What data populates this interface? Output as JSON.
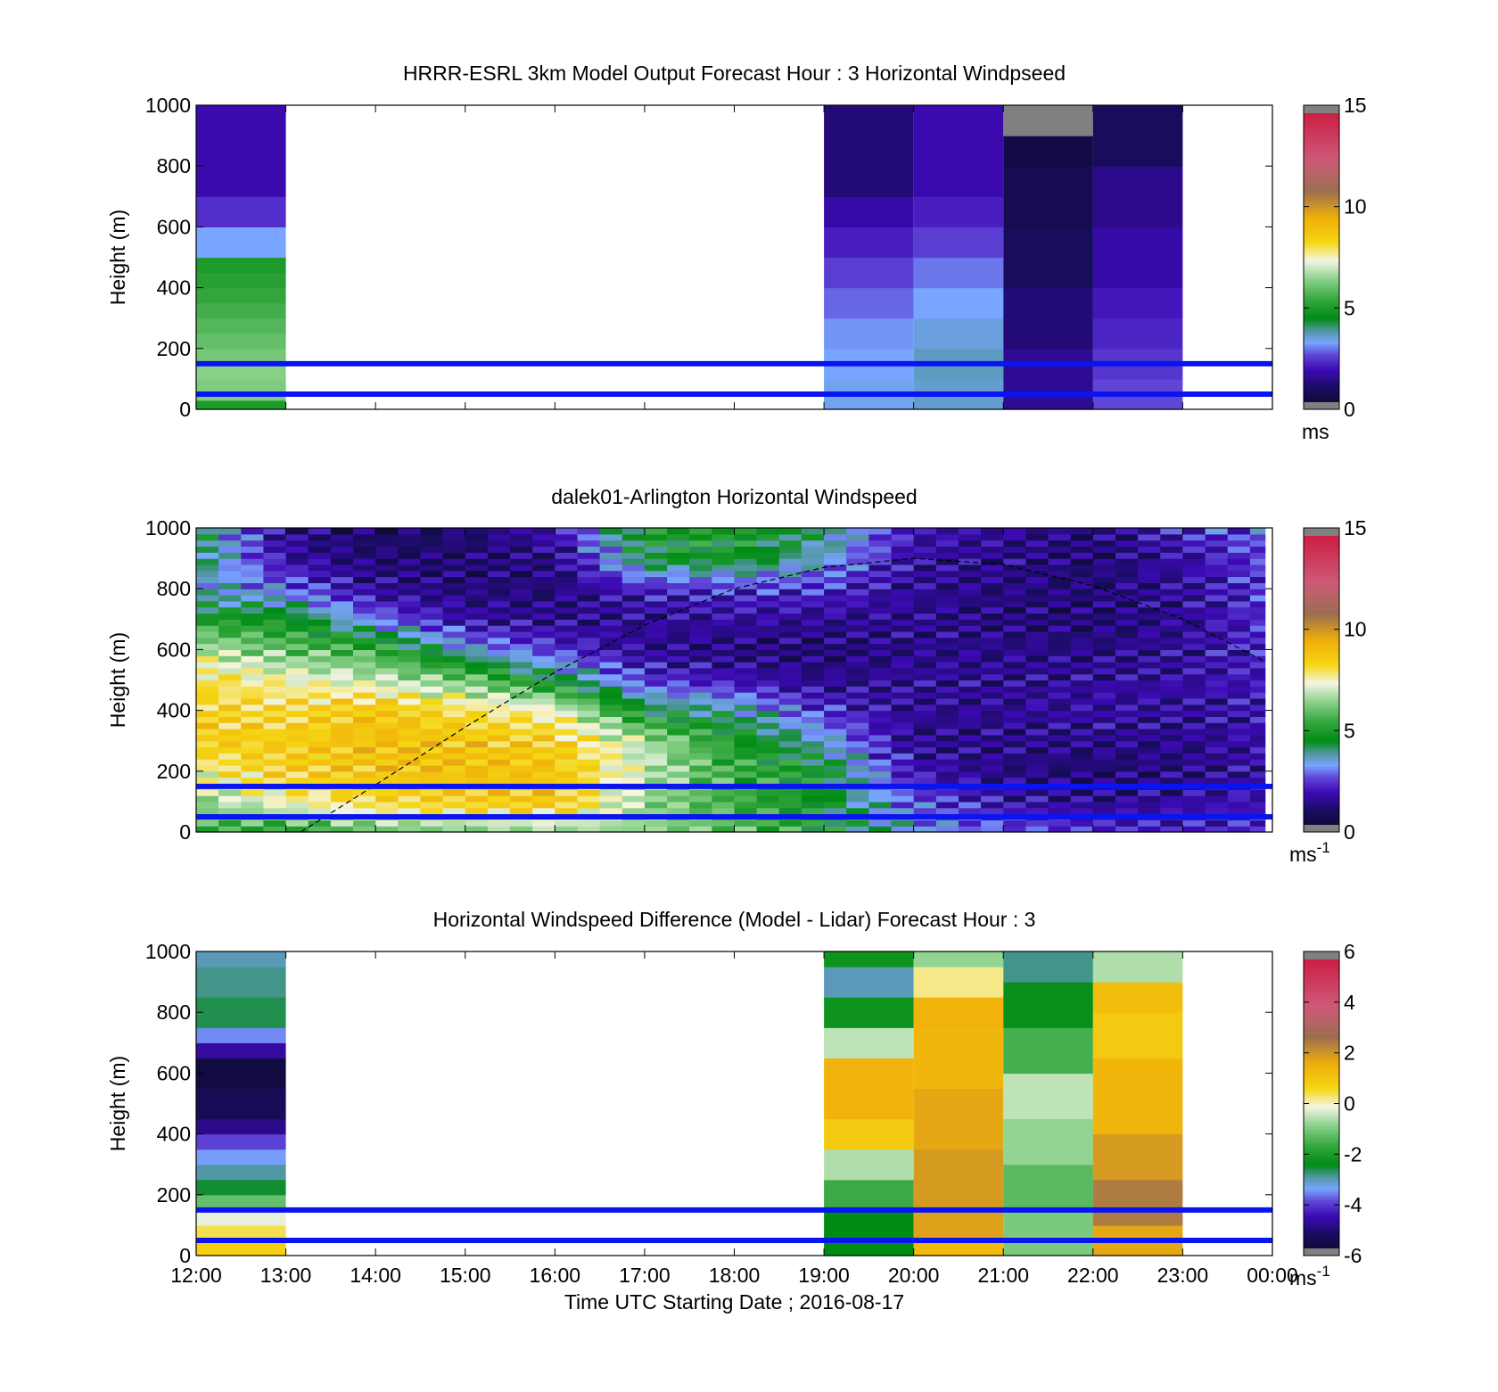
{
  "chart_data": [
    {
      "type": "heatmap",
      "title": "HRRR-ESRL 3km Model Output   Forecast Hour : 3 Horizontal Windpseed",
      "ylabel": "Height (m)",
      "xlabel": "",
      "xlim": [
        "12:00",
        "00:00"
      ],
      "ylim": [
        0,
        1000
      ],
      "yticks": [
        0,
        200,
        400,
        600,
        800,
        1000
      ],
      "colorbar": {
        "min": 0,
        "max": 15,
        "ticks": [
          "0",
          "5",
          "10",
          "15"
        ],
        "unit_main": "ms",
        "unit_sup": ""
      },
      "reference_lines_m": [
        50,
        150
      ],
      "reference_line_color": "#0a14f0",
      "columns": [
        {
          "start": "12:00",
          "end": "13:00",
          "cells": [
            {
              "from": 0,
              "to": 30,
              "value": 5.0
            },
            {
              "from": 30,
              "to": 100,
              "value": 6.3
            },
            {
              "from": 100,
              "to": 150,
              "value": 6.4
            },
            {
              "from": 150,
              "to": 200,
              "value": 6.2
            },
            {
              "from": 200,
              "to": 250,
              "value": 6.0
            },
            {
              "from": 250,
              "to": 300,
              "value": 5.8
            },
            {
              "from": 300,
              "to": 350,
              "value": 5.6
            },
            {
              "from": 350,
              "to": 400,
              "value": 5.4
            },
            {
              "from": 400,
              "to": 450,
              "value": 5.2
            },
            {
              "from": 450,
              "to": 500,
              "value": 5.0
            },
            {
              "from": 500,
              "to": 600,
              "value": 3.3
            },
            {
              "from": 600,
              "to": 700,
              "value": 2.4
            },
            {
              "from": 700,
              "to": 1000,
              "value": 1.9
            }
          ]
        },
        {
          "start": "19:00",
          "end": "20:00",
          "cells": [
            {
              "from": 0,
              "to": 100,
              "value": 3.4
            },
            {
              "from": 100,
              "to": 200,
              "value": 3.3
            },
            {
              "from": 200,
              "to": 300,
              "value": 3.2
            },
            {
              "from": 300,
              "to": 400,
              "value": 2.9
            },
            {
              "from": 400,
              "to": 500,
              "value": 2.6
            },
            {
              "from": 500,
              "to": 600,
              "value": 2.2
            },
            {
              "from": 600,
              "to": 700,
              "value": 1.8
            },
            {
              "from": 700,
              "to": 1000,
              "value": 1.3
            }
          ]
        },
        {
          "start": "20:00",
          "end": "21:00",
          "cells": [
            {
              "from": 0,
              "to": 100,
              "value": 3.6
            },
            {
              "from": 100,
              "to": 200,
              "value": 3.7
            },
            {
              "from": 200,
              "to": 300,
              "value": 3.5
            },
            {
              "from": 300,
              "to": 400,
              "value": 3.3
            },
            {
              "from": 400,
              "to": 500,
              "value": 3.0
            },
            {
              "from": 500,
              "to": 600,
              "value": 2.6
            },
            {
              "from": 600,
              "to": 700,
              "value": 2.2
            },
            {
              "from": 700,
              "to": 1000,
              "value": 1.9
            }
          ]
        },
        {
          "start": "21:00",
          "end": "22:00",
          "cells": [
            {
              "from": 0,
              "to": 200,
              "value": 1.6
            },
            {
              "from": 200,
              "to": 400,
              "value": 1.3
            },
            {
              "from": 400,
              "to": 600,
              "value": 1.0
            },
            {
              "from": 600,
              "to": 800,
              "value": 0.8
            },
            {
              "from": 800,
              "to": 900,
              "value": 0.6
            },
            {
              "from": 900,
              "to": 1000,
              "value": -0.5
            }
          ]
        },
        {
          "start": "22:00",
          "end": "23:00",
          "cells": [
            {
              "from": 0,
              "to": 100,
              "value": 2.7
            },
            {
              "from": 100,
              "to": 200,
              "value": 2.5
            },
            {
              "from": 200,
              "to": 300,
              "value": 2.3
            },
            {
              "from": 300,
              "to": 400,
              "value": 2.1
            },
            {
              "from": 400,
              "to": 600,
              "value": 1.8
            },
            {
              "from": 600,
              "to": 800,
              "value": 1.5
            },
            {
              "from": 800,
              "to": 1000,
              "value": 1.0
            }
          ]
        }
      ]
    },
    {
      "type": "heatmap",
      "title": "dalek01-Arlington  Horizontal Windspeed",
      "ylabel": "Height (m)",
      "xlabel": "",
      "xlim": [
        "12:00",
        "00:00"
      ],
      "ylim": [
        0,
        1000
      ],
      "yticks": [
        0,
        200,
        400,
        600,
        800,
        1000
      ],
      "colorbar": {
        "min": 0,
        "max": 15,
        "ticks": [
          "0",
          "5",
          "10",
          "15"
        ],
        "unit_main": "ms",
        "unit_sup": "-1"
      },
      "reference_lines_m": [
        50,
        150
      ],
      "reference_line_color": "#0a14f0",
      "data_extent": [
        "12:00",
        "23:55"
      ],
      "column_minutes": 15,
      "profiles": {
        "hours": [
          "12:00",
          "13:00",
          "14:00",
          "15:00",
          "16:00",
          "17:00",
          "18:00",
          "19:00",
          "20:00",
          "21:00",
          "22:00",
          "23:00",
          "23:55"
        ],
        "heights_m": [
          0,
          100,
          200,
          300,
          400,
          500,
          600,
          700,
          800,
          900,
          1000
        ],
        "values": [
          [
            5.5,
            6.5,
            7.5,
            8.6,
            8.4,
            8.0,
            7.0,
            5.0,
            3.6,
            4.3,
            4.6
          ],
          [
            5.0,
            7.5,
            8.5,
            8.5,
            8.2,
            7.5,
            6.0,
            4.8,
            3.0,
            1.8,
            1.5
          ],
          [
            6.0,
            8.2,
            8.8,
            9.0,
            8.8,
            7.0,
            5.5,
            3.0,
            1.6,
            1.2,
            1.0
          ],
          [
            6.2,
            8.5,
            9.0,
            8.8,
            8.0,
            6.2,
            3.5,
            1.8,
            1.3,
            1.2,
            1.2
          ],
          [
            6.5,
            8.8,
            8.8,
            8.5,
            7.5,
            4.5,
            2.5,
            1.5,
            1.3,
            1.4,
            2.0
          ],
          [
            6.5,
            6.5,
            7.0,
            6.8,
            4.5,
            2.5,
            1.6,
            1.6,
            2.2,
            4.5,
            5.0
          ],
          [
            6.0,
            5.5,
            5.5,
            5.0,
            4.0,
            2.0,
            1.3,
            1.8,
            2.4,
            4.8,
            5.0
          ],
          [
            5.0,
            4.6,
            4.8,
            3.6,
            2.4,
            1.5,
            1.2,
            1.6,
            2.4,
            3.6,
            4.2
          ],
          [
            3.4,
            2.8,
            2.0,
            1.5,
            1.6,
            1.7,
            1.5,
            1.6,
            1.6,
            1.8,
            2.0
          ],
          [
            2.8,
            1.9,
            1.4,
            1.5,
            1.6,
            1.6,
            1.5,
            1.3,
            1.4,
            1.5,
            1.7
          ],
          [
            2.5,
            1.5,
            1.2,
            1.5,
            1.8,
            1.7,
            1.4,
            1.2,
            1.3,
            1.2,
            1.3
          ],
          [
            2.2,
            1.8,
            1.4,
            1.5,
            1.7,
            1.8,
            1.7,
            1.6,
            1.7,
            1.8,
            2.4
          ],
          [
            2.4,
            2.0,
            1.8,
            1.9,
            2.0,
            2.1,
            2.3,
            2.4,
            2.5,
            2.6,
            2.9
          ]
        ]
      },
      "dashed_curve": [
        {
          "t": "13:10",
          "h": 0
        },
        {
          "t": "14:00",
          "h": 155
        },
        {
          "t": "15:00",
          "h": 345
        },
        {
          "t": "16:00",
          "h": 525
        },
        {
          "t": "17:00",
          "h": 680
        },
        {
          "t": "18:00",
          "h": 800
        },
        {
          "t": "19:00",
          "h": 870
        },
        {
          "t": "20:00",
          "h": 900
        },
        {
          "t": "21:00",
          "h": 880
        },
        {
          "t": "22:00",
          "h": 810
        },
        {
          "t": "23:00",
          "h": 700
        },
        {
          "t": "23:55",
          "h": 560
        }
      ]
    },
    {
      "type": "heatmap",
      "title": "Horizontal Windspeed Difference (Model - Lidar) Forecast Hour : 3",
      "ylabel": "Height (m)",
      "xlabel": "Time UTC  Starting Date ; 2016-08-17",
      "xticks": [
        "12:00",
        "13:00",
        "14:00",
        "15:00",
        "16:00",
        "17:00",
        "18:00",
        "19:00",
        "20:00",
        "21:00",
        "22:00",
        "23:00",
        "00:00"
      ],
      "xlim": [
        "12:00",
        "00:00"
      ],
      "ylim": [
        0,
        1000
      ],
      "yticks": [
        0,
        200,
        400,
        600,
        800,
        1000
      ],
      "colorbar": {
        "min": -6,
        "max": 6,
        "ticks": [
          "-6",
          "-4",
          "-2",
          "0",
          "2",
          "4",
          "6"
        ],
        "unit_main": "ms",
        "unit_sup": "-1"
      },
      "reference_lines_m": [
        50,
        150
      ],
      "reference_line_color": "#0a14f0",
      "columns": [
        {
          "start": "12:00",
          "end": "13:00",
          "cells": [
            {
              "from": 0,
              "to": 50,
              "value": 0.8
            },
            {
              "from": 50,
              "to": 100,
              "value": 0.4
            },
            {
              "from": 100,
              "to": 150,
              "value": -0.2
            },
            {
              "from": 150,
              "to": 200,
              "value": -1.2
            },
            {
              "from": 200,
              "to": 250,
              "value": -2.5
            },
            {
              "from": 250,
              "to": 300,
              "value": -2.9
            },
            {
              "from": 300,
              "to": 350,
              "value": -3.4
            },
            {
              "from": 350,
              "to": 400,
              "value": -3.9
            },
            {
              "from": 400,
              "to": 450,
              "value": -4.8
            },
            {
              "from": 450,
              "to": 550,
              "value": -5.3
            },
            {
              "from": 550,
              "to": 650,
              "value": -5.6
            },
            {
              "from": 650,
              "to": 700,
              "value": -4.6
            },
            {
              "from": 700,
              "to": 750,
              "value": -3.5
            },
            {
              "from": 750,
              "to": 850,
              "value": -2.6
            },
            {
              "from": 850,
              "to": 950,
              "value": -2.8
            },
            {
              "from": 950,
              "to": 1000,
              "value": -3.0
            }
          ]
        },
        {
          "start": "19:00",
          "end": "20:00",
          "cells": [
            {
              "from": 0,
              "to": 150,
              "value": -2.4
            },
            {
              "from": 150,
              "to": 250,
              "value": -1.6
            },
            {
              "from": 250,
              "to": 350,
              "value": -0.6
            },
            {
              "from": 350,
              "to": 450,
              "value": 0.9
            },
            {
              "from": 450,
              "to": 650,
              "value": 1.5
            },
            {
              "from": 650,
              "to": 750,
              "value": -0.5
            },
            {
              "from": 750,
              "to": 850,
              "value": -2.2
            },
            {
              "from": 850,
              "to": 950,
              "value": -3.0
            },
            {
              "from": 950,
              "to": 1000,
              "value": -2.2
            }
          ]
        },
        {
          "start": "20:00",
          "end": "21:00",
          "cells": [
            {
              "from": 0,
              "to": 50,
              "value": 1.3
            },
            {
              "from": 50,
              "to": 150,
              "value": 1.8
            },
            {
              "from": 150,
              "to": 350,
              "value": 1.9
            },
            {
              "from": 350,
              "to": 550,
              "value": 1.7
            },
            {
              "from": 550,
              "to": 750,
              "value": 1.4
            },
            {
              "from": 750,
              "to": 850,
              "value": 1.5
            },
            {
              "from": 850,
              "to": 950,
              "value": 0.2
            },
            {
              "from": 950,
              "to": 1000,
              "value": -0.8
            }
          ]
        },
        {
          "start": "21:00",
          "end": "22:00",
          "cells": [
            {
              "from": 0,
              "to": 150,
              "value": -1.0
            },
            {
              "from": 150,
              "to": 300,
              "value": -1.3
            },
            {
              "from": 300,
              "to": 450,
              "value": -0.8
            },
            {
              "from": 450,
              "to": 600,
              "value": -0.5
            },
            {
              "from": 600,
              "to": 750,
              "value": -1.5
            },
            {
              "from": 750,
              "to": 900,
              "value": -2.3
            },
            {
              "from": 900,
              "to": 1000,
              "value": -2.8
            }
          ]
        },
        {
          "start": "22:00",
          "end": "23:00",
          "cells": [
            {
              "from": 0,
              "to": 100,
              "value": 1.7
            },
            {
              "from": 100,
              "to": 250,
              "value": 2.4
            },
            {
              "from": 250,
              "to": 400,
              "value": 1.9
            },
            {
              "from": 400,
              "to": 650,
              "value": 1.4
            },
            {
              "from": 650,
              "to": 800,
              "value": 0.9
            },
            {
              "from": 800,
              "to": 900,
              "value": 1.2
            },
            {
              "from": 900,
              "to": 1000,
              "value": -0.6
            }
          ]
        }
      ]
    }
  ]
}
